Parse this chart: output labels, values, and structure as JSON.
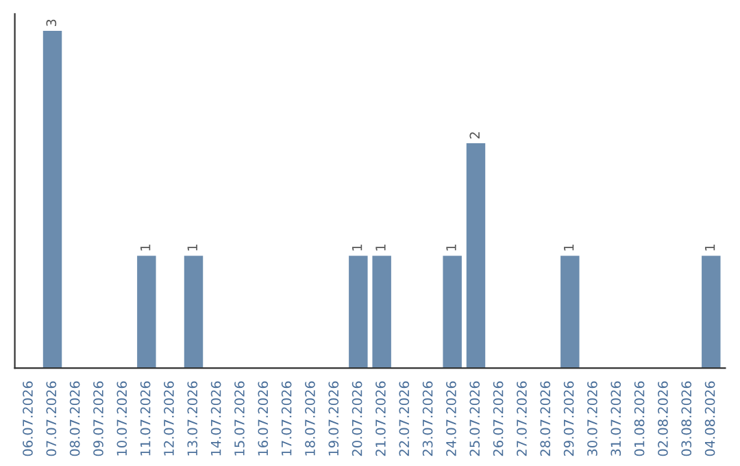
{
  "chart_data": {
    "type": "bar",
    "categories": [
      "06.07.2026",
      "07.07.2026",
      "08.07.2026",
      "09.07.2026",
      "10.07.2026",
      "11.07.2026",
      "12.07.2026",
      "13.07.2026",
      "14.07.2026",
      "15.07.2026",
      "16.07.2026",
      "17.07.2026",
      "18.07.2026",
      "19.07.2026",
      "20.07.2026",
      "21.07.2026",
      "22.07.2026",
      "23.07.2026",
      "24.07.2026",
      "25.07.2026",
      "26.07.2026",
      "27.07.2026",
      "28.07.2026",
      "29.07.2026",
      "30.07.2026",
      "31.07.2026",
      "01.08.2026",
      "02.08.2026",
      "03.08.2026",
      "04.08.2026"
    ],
    "values": [
      0,
      3,
      0,
      0,
      0,
      1,
      0,
      1,
      0,
      0,
      0,
      0,
      0,
      0,
      1,
      1,
      0,
      0,
      1,
      2,
      0,
      0,
      0,
      1,
      0,
      0,
      0,
      0,
      0,
      1
    ],
    "value_labels": [
      null,
      "3",
      null,
      null,
      null,
      "1",
      null,
      "1",
      null,
      null,
      null,
      null,
      null,
      null,
      "1",
      "1",
      null,
      null,
      "1",
      "2",
      null,
      null,
      null,
      "1",
      null,
      null,
      null,
      null,
      null,
      "1"
    ],
    "color": "#6b8cae",
    "grid": false,
    "legend": false
  }
}
